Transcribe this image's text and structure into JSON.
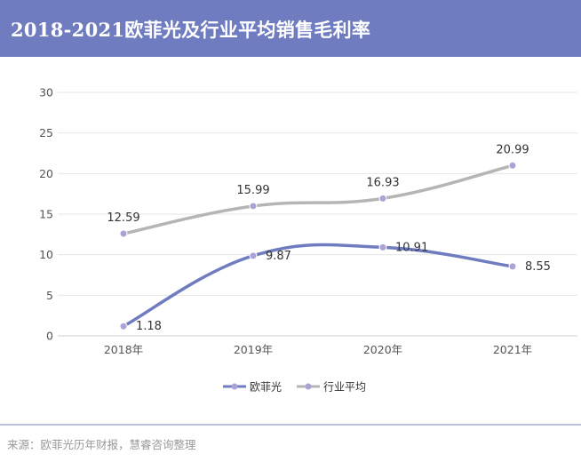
{
  "header": {
    "title": "2018-2021欧菲光及行业平均销售毛利率"
  },
  "chart_data": {
    "type": "line",
    "title": "2018-2021欧菲光及行业平均销售毛利率",
    "categories": [
      "2018年",
      "2019年",
      "2020年",
      "2021年"
    ],
    "series": [
      {
        "name": "欧菲光",
        "values": [
          1.18,
          9.87,
          10.91,
          8.55
        ],
        "color": "#6f7cc0"
      },
      {
        "name": "行业平均",
        "values": [
          12.59,
          15.99,
          16.93,
          20.99
        ],
        "color": "#b5b5b5"
      }
    ],
    "yticks": [
      0,
      5,
      10,
      15,
      20,
      25,
      30
    ],
    "ylim": [
      0,
      30
    ],
    "grid": true,
    "legend": "bottom-center",
    "marker_color": "#a9a3d6"
  },
  "footer": {
    "source": "来源：欧菲光历年财报，慧睿咨询整理"
  }
}
